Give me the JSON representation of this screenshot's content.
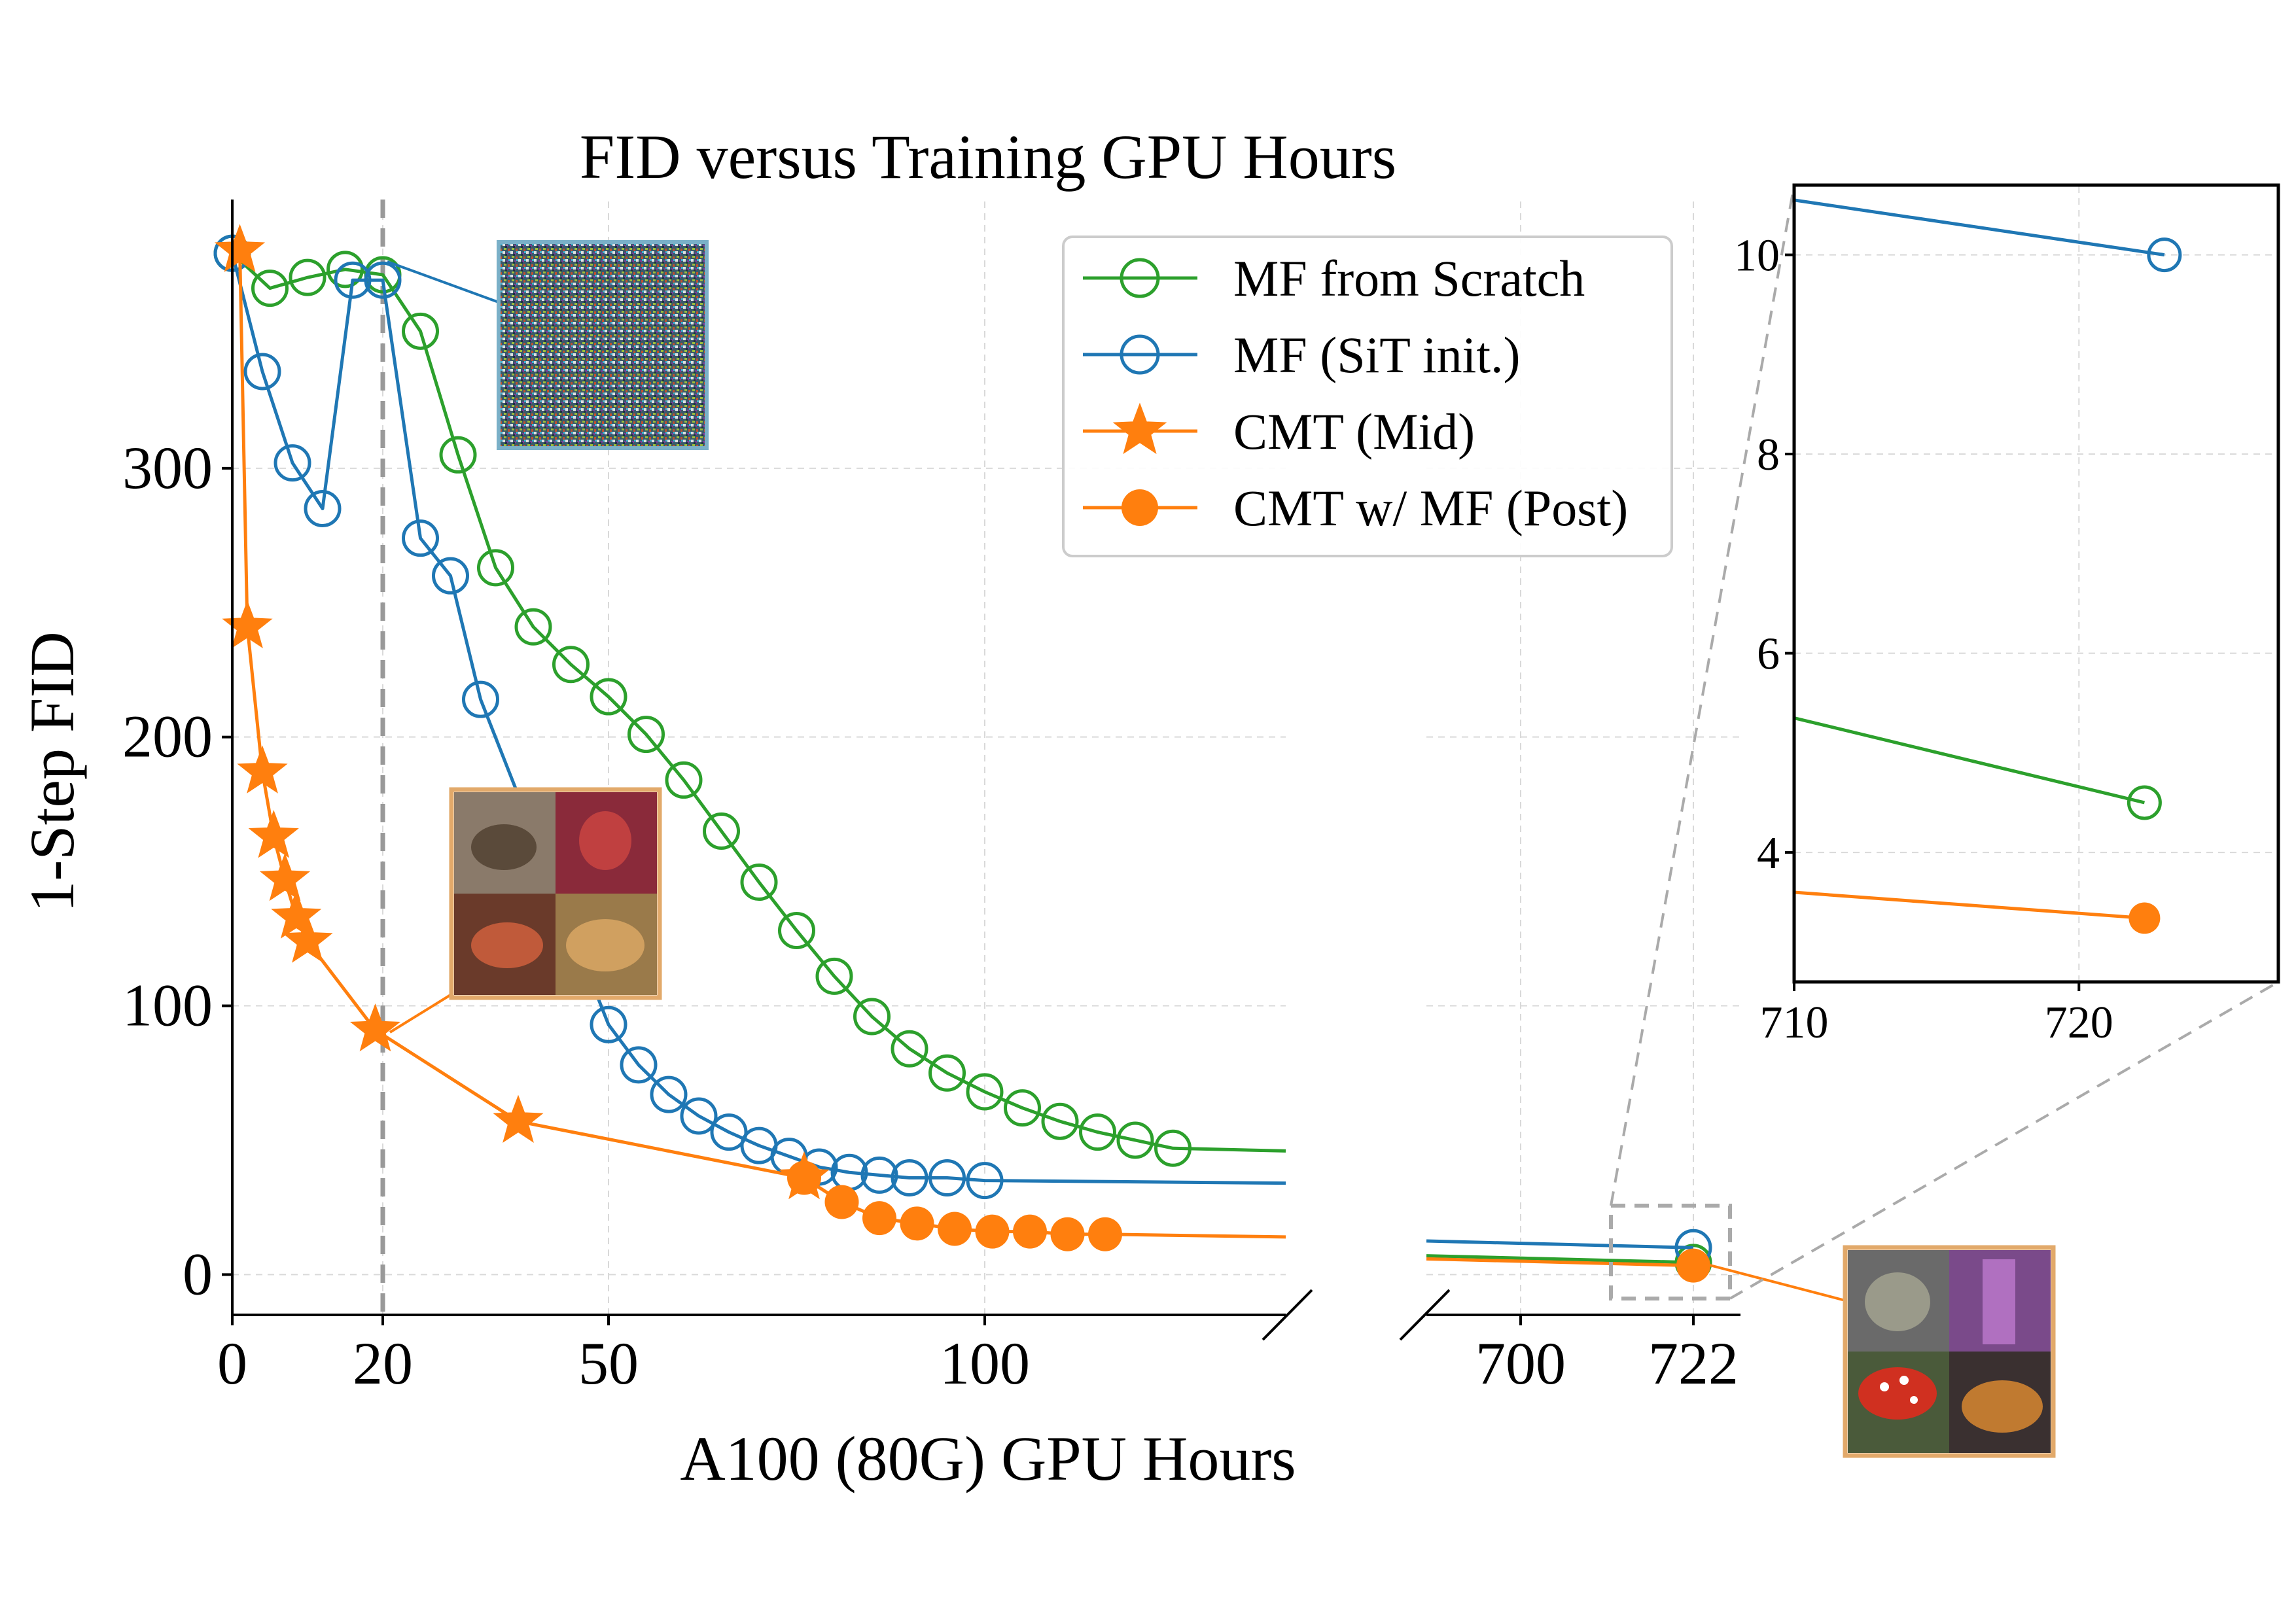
{
  "chart_data": {
    "type": "line",
    "title": "FID versus Training GPU Hours",
    "xlabel": "A100 (80G) GPU Hours",
    "ylabel": "1-Step FID",
    "x_axis": {
      "segment_1": {
        "xlim": [
          0,
          140
        ],
        "ticks": [
          0,
          20,
          50,
          100
        ]
      },
      "segment_2": {
        "xlim": [
          688,
          728
        ],
        "ticks": [
          700,
          722
        ]
      },
      "broken": true
    },
    "ylim": [
      -15,
      400
    ],
    "yticks": [
      0,
      100,
      200,
      300
    ],
    "grid": true,
    "legend_position": "top-right",
    "vline_x": 20,
    "series": [
      {
        "name": "MF from Scratch",
        "color": "#2ca02c",
        "marker": "open-circle",
        "points": [
          [
            0,
            380
          ],
          [
            5,
            367
          ],
          [
            10,
            371
          ],
          [
            15,
            374
          ],
          [
            20,
            372
          ],
          [
            25,
            351
          ],
          [
            30,
            305
          ],
          [
            35,
            263
          ],
          [
            40,
            241
          ],
          [
            45,
            227
          ],
          [
            50,
            215
          ],
          [
            55,
            201
          ],
          [
            60,
            184
          ],
          [
            65,
            165
          ],
          [
            70,
            146
          ],
          [
            75,
            128
          ],
          [
            80,
            111
          ],
          [
            85,
            96
          ],
          [
            90,
            84
          ],
          [
            95,
            75
          ],
          [
            100,
            68
          ],
          [
            105,
            62
          ],
          [
            110,
            57
          ],
          [
            115,
            53
          ],
          [
            120,
            50
          ],
          [
            125,
            47
          ]
        ],
        "tail_to": [
          140,
          46
        ],
        "segment_2_points": [
          [
            722,
            4.5
          ]
        ]
      },
      {
        "name": "MF (SiT init.)",
        "color": "#1f77b4",
        "marker": "open-circle",
        "points": [
          [
            0,
            380
          ],
          [
            4,
            336
          ],
          [
            8,
            302
          ],
          [
            12,
            285
          ],
          [
            16,
            370
          ],
          [
            20,
            370
          ],
          [
            25,
            274
          ],
          [
            29,
            260
          ],
          [
            33,
            214
          ],
          [
            50,
            93
          ],
          [
            54,
            78
          ],
          [
            58,
            67
          ],
          [
            62,
            59
          ],
          [
            66,
            53
          ],
          [
            70,
            48
          ],
          [
            74,
            44
          ],
          [
            78,
            40
          ],
          [
            82,
            38
          ],
          [
            86,
            37
          ],
          [
            90,
            36
          ],
          [
            95,
            36
          ],
          [
            100,
            35
          ]
        ],
        "tail_to": [
          140,
          34
        ],
        "segment_2_points": [
          [
            722,
            10
          ]
        ]
      },
      {
        "name": "CMT (Mid)",
        "color": "#ff7f0e",
        "marker": "star",
        "points": [
          [
            1,
            381
          ],
          [
            2,
            241
          ],
          [
            4,
            187
          ],
          [
            5.5,
            163
          ],
          [
            7,
            147
          ],
          [
            8.5,
            133
          ],
          [
            10,
            124
          ],
          [
            19,
            91
          ],
          [
            38,
            57
          ],
          [
            76,
            36
          ]
        ]
      },
      {
        "name": "CMT w/ MF (Post)",
        "color": "#ff7f0e",
        "marker": "filled-circle",
        "points": [
          [
            76,
            36
          ],
          [
            81,
            27
          ],
          [
            86,
            21
          ],
          [
            91,
            19
          ],
          [
            96,
            17
          ],
          [
            101,
            16
          ],
          [
            106,
            16
          ],
          [
            111,
            15
          ],
          [
            116,
            15
          ]
        ],
        "tail_to": [
          140,
          14
        ],
        "segment_2_points": [
          [
            722,
            3.34
          ]
        ]
      }
    ],
    "inset": {
      "xlim": [
        710,
        727
      ],
      "ylim": [
        2.7,
        10.7
      ],
      "xticks": [
        710,
        720
      ],
      "yticks": [
        4,
        6,
        8,
        10
      ],
      "series_points": [
        {
          "color": "#1f77b4",
          "marker": "open-circle",
          "from": [
            710,
            10.55
          ],
          "to": [
            723,
            10
          ]
        },
        {
          "color": "#2ca02c",
          "marker": "open-circle",
          "from": [
            710,
            5.35
          ],
          "to": [
            722.3,
            4.5
          ]
        },
        {
          "color": "#ff7f0e",
          "marker": "filled-circle",
          "from": [
            710,
            3.6
          ],
          "to": [
            722.3,
            3.34
          ]
        }
      ]
    }
  }
}
